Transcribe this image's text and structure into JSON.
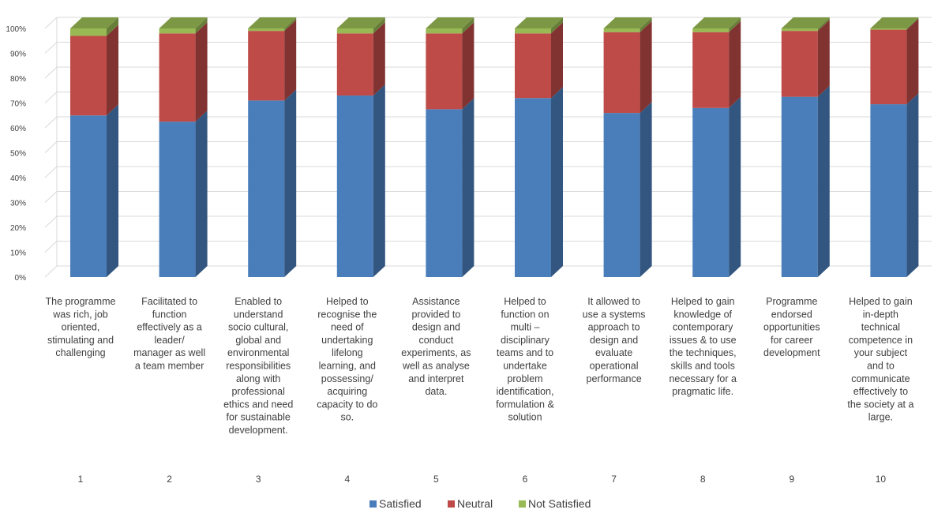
{
  "chart_data": {
    "type": "bar",
    "stacked": "percent",
    "three_d": true,
    "title": "",
    "xlabel": "",
    "ylabel": "",
    "ylim": [
      0,
      100
    ],
    "yticks": [
      "0%",
      "10%",
      "20%",
      "30%",
      "40%",
      "50%",
      "60%",
      "70%",
      "80%",
      "90%",
      "100%"
    ],
    "grid": true,
    "legend_position": "bottom",
    "categories": [
      "1",
      "2",
      "3",
      "4",
      "5",
      "6",
      "7",
      "8",
      "9",
      "10"
    ],
    "category_descriptions": [
      [
        "The programme",
        "was rich, job",
        "oriented,",
        "stimulating and",
        "challenging"
      ],
      [
        "Facilitated to",
        "function",
        "effectively as a",
        "leader/",
        "manager as well",
        "a team member"
      ],
      [
        "Enabled to",
        "understand",
        "socio cultural,",
        "global and",
        "environmental",
        "responsibilities",
        "along with",
        "professional",
        "ethics and need",
        "for sustainable",
        "development."
      ],
      [
        "Helped to",
        "recognise the",
        "need of",
        "undertaking",
        "lifelong",
        "learning, and",
        "possessing/",
        "acquiring",
        "capacity to do",
        "so."
      ],
      [
        "Assistance",
        "provided to",
        "design and",
        "conduct",
        "experiments, as",
        "well as analyse",
        "and interpret",
        "data."
      ],
      [
        "Helped to",
        "function on",
        "multi –",
        "disciplinary",
        "teams and to",
        "undertake",
        "problem",
        "identification,",
        "formulation &",
        "solution"
      ],
      [
        "It allowed to",
        "use a systems",
        "approach to",
        "design and",
        "evaluate",
        "operational",
        "performance"
      ],
      [
        "Helped to gain",
        "knowledge of",
        "contemporary",
        "issues & to use",
        "the techniques,",
        "skills and tools",
        "necessary for a",
        "pragmatic life."
      ],
      [
        "Programme",
        "endorsed",
        "opportunities",
        "for career",
        "development"
      ],
      [
        "Helped to gain",
        "in-depth",
        "technical",
        "competence in",
        "your subject",
        "and to",
        "communicate",
        "effectively to",
        "the society at a",
        "large."
      ]
    ],
    "series": [
      {
        "name": "Satisfied",
        "color": "#4a7ebb",
        "values": [
          65,
          62.5,
          71,
          73,
          67.5,
          72,
          66,
          68,
          72.5,
          69.5
        ]
      },
      {
        "name": "Neutral",
        "color": "#be4b48",
        "values": [
          32,
          35.5,
          28,
          25,
          30.5,
          26,
          32.5,
          30.5,
          26.5,
          30
        ]
      },
      {
        "name": "Not Satisfied",
        "color": "#98b954",
        "values": [
          3,
          2,
          1,
          2,
          2,
          2,
          1.5,
          1.5,
          1,
          0.5
        ]
      }
    ]
  }
}
